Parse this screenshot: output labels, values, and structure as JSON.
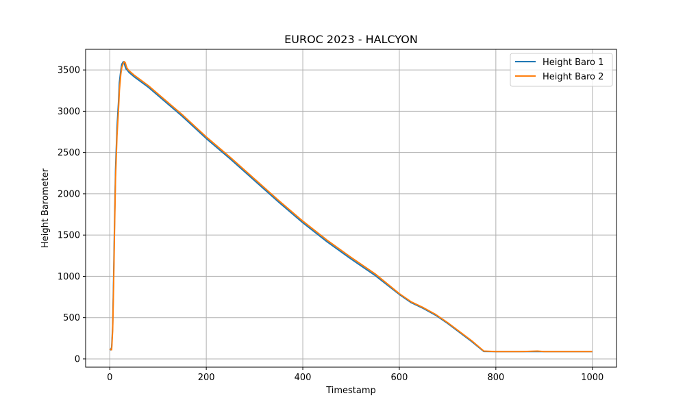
{
  "chart_data": {
    "type": "line",
    "title": "EUROC 2023 - HALCYON",
    "xlabel": "Timestamp",
    "ylabel": "Height Barometer",
    "xlim": [
      -50,
      1050
    ],
    "ylim": [
      -100,
      3750
    ],
    "xticks": [
      0,
      200,
      400,
      600,
      800,
      1000
    ],
    "yticks": [
      0,
      500,
      1000,
      1500,
      2000,
      2500,
      3000,
      3500
    ],
    "grid": true,
    "legend_position": "top-right",
    "series": [
      {
        "name": "Height Baro 1",
        "color": "#1f77b4",
        "x": [
          0,
          2,
          4,
          6,
          8,
          10,
          12,
          15,
          18,
          20,
          23,
          25,
          28,
          30,
          32,
          34,
          36,
          40,
          50,
          80,
          100,
          150,
          200,
          250,
          300,
          350,
          400,
          450,
          500,
          550,
          600,
          625,
          650,
          675,
          700,
          750,
          775,
          800,
          850,
          886,
          900,
          950,
          1000
        ],
        "y": [
          120,
          110,
          140,
          400,
          1000,
          1700,
          2300,
          2800,
          3100,
          3350,
          3500,
          3570,
          3600,
          3580,
          3540,
          3510,
          3500,
          3470,
          3420,
          3290,
          3190,
          2940,
          2670,
          2420,
          2160,
          1900,
          1650,
          1420,
          1210,
          1010,
          780,
          680,
          610,
          530,
          430,
          210,
          90,
          88,
          88,
          90,
          88,
          88,
          88
        ]
      },
      {
        "name": "Height Baro 2",
        "color": "#ff7f0e",
        "x": [
          0,
          2,
          4,
          6,
          8,
          10,
          12,
          15,
          18,
          20,
          23,
          25,
          28,
          30,
          32,
          34,
          36,
          40,
          50,
          80,
          100,
          150,
          200,
          250,
          300,
          350,
          400,
          450,
          500,
          550,
          600,
          625,
          650,
          675,
          700,
          750,
          775,
          800,
          850,
          886,
          900,
          950,
          1000
        ],
        "y": [
          120,
          112,
          110,
          350,
          900,
          1600,
          2200,
          2700,
          3000,
          3250,
          3450,
          3530,
          3580,
          3600,
          3590,
          3550,
          3520,
          3490,
          3440,
          3310,
          3210,
          2960,
          2690,
          2440,
          2180,
          1920,
          1670,
          1440,
          1230,
          1030,
          790,
          690,
          620,
          540,
          440,
          220,
          95,
          88,
          88,
          95,
          88,
          88,
          88
        ]
      }
    ]
  }
}
